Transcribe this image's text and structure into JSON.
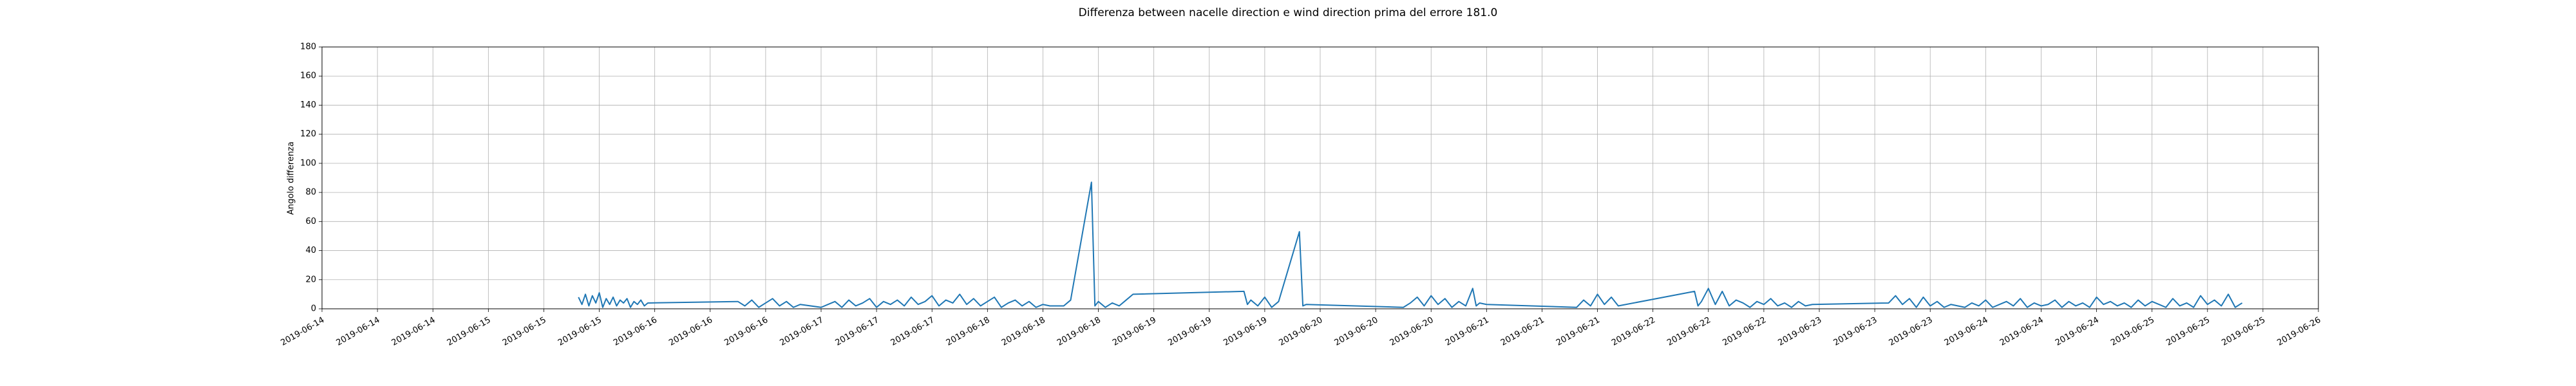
{
  "chart_data": {
    "type": "line",
    "title": "Differenza between nacelle direction e wind direction prima del errore 181.0",
    "ylabel": "Angolo differenza",
    "color": "#1f77b4",
    "grid": true,
    "x": [
      "2019-06-15 13:00",
      "2019-06-15 13:30",
      "2019-06-15 14:00",
      "2019-06-15 14:30",
      "2019-06-15 15:00",
      "2019-06-15 15:30",
      "2019-06-15 16:00",
      "2019-06-15 16:30",
      "2019-06-15 17:00",
      "2019-06-15 17:30",
      "2019-06-15 18:00",
      "2019-06-15 18:30",
      "2019-06-15 19:00",
      "2019-06-15 19:30",
      "2019-06-15 20:00",
      "2019-06-15 20:30",
      "2019-06-15 21:00",
      "2019-06-15 21:30",
      "2019-06-15 22:00",
      "2019-06-15 22:30",
      "2019-06-15 23:00",
      "2019-06-16 12:00",
      "2019-06-16 13:00",
      "2019-06-16 14:00",
      "2019-06-16 15:00",
      "2019-06-16 16:00",
      "2019-06-16 17:00",
      "2019-06-16 18:00",
      "2019-06-16 19:00",
      "2019-06-16 20:00",
      "2019-06-16 21:00",
      "2019-06-17 00:00",
      "2019-06-17 01:00",
      "2019-06-17 02:00",
      "2019-06-17 03:00",
      "2019-06-17 04:00",
      "2019-06-17 05:00",
      "2019-06-17 06:00",
      "2019-06-17 07:00",
      "2019-06-17 08:00",
      "2019-06-17 09:00",
      "2019-06-17 10:00",
      "2019-06-17 11:00",
      "2019-06-17 12:00",
      "2019-06-17 13:00",
      "2019-06-17 14:00",
      "2019-06-17 15:00",
      "2019-06-17 16:00",
      "2019-06-17 17:00",
      "2019-06-17 18:00",
      "2019-06-17 19:00",
      "2019-06-17 20:00",
      "2019-06-17 21:00",
      "2019-06-17 22:00",
      "2019-06-17 23:00",
      "2019-06-18 00:00",
      "2019-06-18 01:00",
      "2019-06-18 02:00",
      "2019-06-18 03:00",
      "2019-06-18 04:00",
      "2019-06-18 05:00",
      "2019-06-18 06:00",
      "2019-06-18 07:00",
      "2019-06-18 08:00",
      "2019-06-18 09:00",
      "2019-06-18 11:00",
      "2019-06-18 12:00",
      "2019-06-18 15:00",
      "2019-06-18 15:30",
      "2019-06-18 16:00",
      "2019-06-18 17:00",
      "2019-06-18 18:00",
      "2019-06-18 19:00",
      "2019-06-18 20:00",
      "2019-06-18 21:00",
      "2019-06-19 13:00",
      "2019-06-19 13:30",
      "2019-06-19 14:00",
      "2019-06-19 15:00",
      "2019-06-19 16:00",
      "2019-06-19 17:00",
      "2019-06-19 18:00",
      "2019-06-19 21:00",
      "2019-06-19 21:30",
      "2019-06-19 22:00",
      "2019-06-20 12:00",
      "2019-06-20 13:00",
      "2019-06-20 14:00",
      "2019-06-20 15:00",
      "2019-06-20 16:00",
      "2019-06-20 17:00",
      "2019-06-20 18:00",
      "2019-06-20 19:00",
      "2019-06-20 20:00",
      "2019-06-20 21:00",
      "2019-06-20 22:00",
      "2019-06-20 22:30",
      "2019-06-20 23:00",
      "2019-06-21 00:00",
      "2019-06-21 13:00",
      "2019-06-21 14:00",
      "2019-06-21 15:00",
      "2019-06-21 16:00",
      "2019-06-21 17:00",
      "2019-06-21 18:00",
      "2019-06-21 19:00",
      "2019-06-22 06:00",
      "2019-06-22 06:30",
      "2019-06-22 07:00",
      "2019-06-22 08:00",
      "2019-06-22 09:00",
      "2019-06-22 10:00",
      "2019-06-22 11:00",
      "2019-06-22 12:00",
      "2019-06-22 13:00",
      "2019-06-22 14:00",
      "2019-06-22 15:00",
      "2019-06-22 16:00",
      "2019-06-22 17:00",
      "2019-06-22 18:00",
      "2019-06-22 19:00",
      "2019-06-22 20:00",
      "2019-06-22 21:00",
      "2019-06-22 22:00",
      "2019-06-22 23:00",
      "2019-06-23 10:00",
      "2019-06-23 11:00",
      "2019-06-23 12:00",
      "2019-06-23 13:00",
      "2019-06-23 14:00",
      "2019-06-23 15:00",
      "2019-06-23 16:00",
      "2019-06-23 17:00",
      "2019-06-23 18:00",
      "2019-06-23 19:00",
      "2019-06-23 20:00",
      "2019-06-23 21:00",
      "2019-06-23 22:00",
      "2019-06-23 23:00",
      "2019-06-24 00:00",
      "2019-06-24 01:00",
      "2019-06-24 02:00",
      "2019-06-24 03:00",
      "2019-06-24 04:00",
      "2019-06-24 05:00",
      "2019-06-24 06:00",
      "2019-06-24 07:00",
      "2019-06-24 08:00",
      "2019-06-24 09:00",
      "2019-06-24 10:00",
      "2019-06-24 11:00",
      "2019-06-24 12:00",
      "2019-06-24 13:00",
      "2019-06-24 14:00",
      "2019-06-24 15:00",
      "2019-06-24 16:00",
      "2019-06-24 17:00",
      "2019-06-24 18:00",
      "2019-06-24 19:00",
      "2019-06-24 20:00",
      "2019-06-24 21:00",
      "2019-06-24 22:00",
      "2019-06-24 23:00",
      "2019-06-25 00:00",
      "2019-06-25 01:00",
      "2019-06-25 02:00",
      "2019-06-25 03:00",
      "2019-06-25 04:00",
      "2019-06-25 05:00",
      "2019-06-25 06:00",
      "2019-06-25 07:00",
      "2019-06-25 08:00",
      "2019-06-25 09:00",
      "2019-06-25 10:00",
      "2019-06-25 11:00",
      "2019-06-25 12:00",
      "2019-06-25 13:00"
    ],
    "values": [
      8,
      3,
      10,
      2,
      9,
      4,
      11,
      1,
      7,
      3,
      8,
      2,
      6,
      4,
      7,
      1,
      5,
      3,
      6,
      2,
      4,
      5,
      2,
      6,
      1,
      4,
      7,
      2,
      5,
      1,
      3,
      1,
      3,
      5,
      1,
      6,
      2,
      4,
      7,
      1,
      5,
      3,
      6,
      2,
      8,
      3,
      5,
      9,
      2,
      6,
      4,
      10,
      3,
      7,
      2,
      5,
      8,
      1,
      4,
      6,
      2,
      5,
      1,
      3,
      2,
      2,
      6,
      87,
      2,
      5,
      1,
      4,
      2,
      6,
      10,
      12,
      3,
      6,
      2,
      8,
      1,
      5,
      53,
      2,
      3,
      1,
      4,
      8,
      2,
      9,
      3,
      7,
      1,
      5,
      2,
      14,
      2,
      4,
      3,
      1,
      6,
      2,
      10,
      3,
      8,
      2,
      12,
      2,
      5,
      14,
      3,
      12,
      2,
      6,
      4,
      1,
      5,
      3,
      7,
      2,
      4,
      1,
      5,
      2,
      3,
      4,
      9,
      3,
      7,
      1,
      8,
      2,
      5,
      1,
      3,
      2,
      1,
      4,
      2,
      6,
      1,
      3,
      5,
      2,
      7,
      1,
      4,
      2,
      3,
      6,
      1,
      5,
      2,
      4,
      1,
      8,
      3,
      5,
      2,
      4,
      1,
      6,
      2,
      5,
      3,
      1,
      7,
      2,
      4,
      1,
      9,
      3,
      6,
      2,
      10,
      1,
      4
    ],
    "xlim": [
      "2019-06-14 00:00",
      "2019-06-26 00:00"
    ],
    "xticks": [
      {
        "value": "2019-06-14 00:00",
        "label": "2019-06-14"
      },
      {
        "value": "2019-06-14 08:00",
        "label": "2019-06-14"
      },
      {
        "value": "2019-06-14 16:00",
        "label": "2019-06-14"
      },
      {
        "value": "2019-06-15 00:00",
        "label": "2019-06-15"
      },
      {
        "value": "2019-06-15 08:00",
        "label": "2019-06-15"
      },
      {
        "value": "2019-06-15 16:00",
        "label": "2019-06-15"
      },
      {
        "value": "2019-06-16 00:00",
        "label": "2019-06-16"
      },
      {
        "value": "2019-06-16 08:00",
        "label": "2019-06-16"
      },
      {
        "value": "2019-06-16 16:00",
        "label": "2019-06-16"
      },
      {
        "value": "2019-06-17 00:00",
        "label": "2019-06-17"
      },
      {
        "value": "2019-06-17 08:00",
        "label": "2019-06-17"
      },
      {
        "value": "2019-06-17 16:00",
        "label": "2019-06-17"
      },
      {
        "value": "2019-06-18 00:00",
        "label": "2019-06-18"
      },
      {
        "value": "2019-06-18 08:00",
        "label": "2019-06-18"
      },
      {
        "value": "2019-06-18 16:00",
        "label": "2019-06-18"
      },
      {
        "value": "2019-06-19 00:00",
        "label": "2019-06-19"
      },
      {
        "value": "2019-06-19 08:00",
        "label": "2019-06-19"
      },
      {
        "value": "2019-06-19 16:00",
        "label": "2019-06-19"
      },
      {
        "value": "2019-06-20 00:00",
        "label": "2019-06-20"
      },
      {
        "value": "2019-06-20 08:00",
        "label": "2019-06-20"
      },
      {
        "value": "2019-06-20 16:00",
        "label": "2019-06-20"
      },
      {
        "value": "2019-06-21 00:00",
        "label": "2019-06-21"
      },
      {
        "value": "2019-06-21 08:00",
        "label": "2019-06-21"
      },
      {
        "value": "2019-06-21 16:00",
        "label": "2019-06-21"
      },
      {
        "value": "2019-06-22 00:00",
        "label": "2019-06-22"
      },
      {
        "value": "2019-06-22 08:00",
        "label": "2019-06-22"
      },
      {
        "value": "2019-06-22 16:00",
        "label": "2019-06-22"
      },
      {
        "value": "2019-06-23 00:00",
        "label": "2019-06-23"
      },
      {
        "value": "2019-06-23 08:00",
        "label": "2019-06-23"
      },
      {
        "value": "2019-06-23 16:00",
        "label": "2019-06-23"
      },
      {
        "value": "2019-06-24 00:00",
        "label": "2019-06-24"
      },
      {
        "value": "2019-06-24 08:00",
        "label": "2019-06-24"
      },
      {
        "value": "2019-06-24 16:00",
        "label": "2019-06-24"
      },
      {
        "value": "2019-06-25 00:00",
        "label": "2019-06-25"
      },
      {
        "value": "2019-06-25 08:00",
        "label": "2019-06-25"
      },
      {
        "value": "2019-06-25 16:00",
        "label": "2019-06-25"
      },
      {
        "value": "2019-06-26 00:00",
        "label": "2019-06-26"
      }
    ],
    "ylim": [
      0,
      180
    ],
    "yticks": [
      0,
      20,
      40,
      60,
      80,
      100,
      120,
      140,
      160,
      180
    ]
  }
}
